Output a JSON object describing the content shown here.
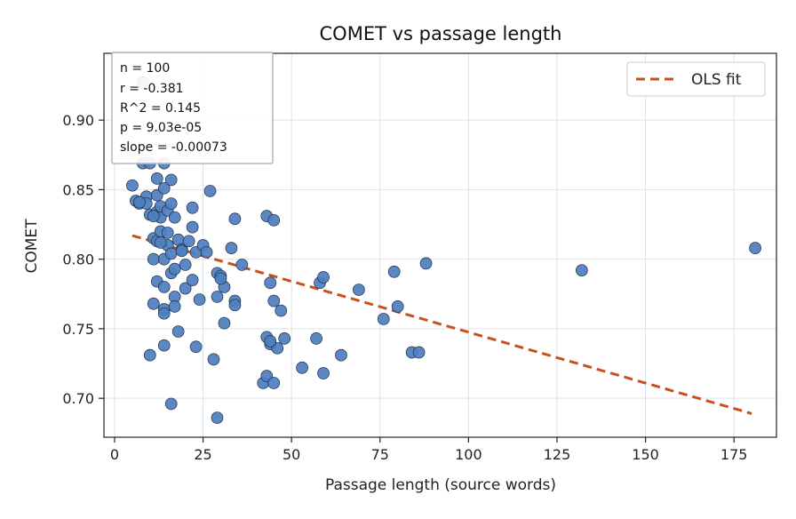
{
  "chart_data": {
    "type": "scatter",
    "title": "COMET vs passage length",
    "xlabel": "Passage length (source words)",
    "ylabel": "COMET",
    "xlim": [
      -3,
      187
    ],
    "ylim": [
      0.672,
      0.948
    ],
    "xticks": [
      0,
      25,
      50,
      75,
      100,
      125,
      150,
      175
    ],
    "yticks": [
      0.7,
      0.75,
      0.8,
      0.85,
      0.9
    ],
    "grid": true,
    "legend": {
      "position": "top-right",
      "entries": [
        "OLS fit"
      ]
    },
    "stats_lines": [
      "n = 100",
      "r = -0.381",
      "R^2 = 0.145",
      "p = 9.03e-05",
      "slope = -0.00073"
    ],
    "fit_line": {
      "x": [
        5,
        180
      ],
      "y": [
        0.817,
        0.689
      ]
    },
    "points": [
      [
        5,
        0.853
      ],
      [
        6,
        0.842
      ],
      [
        7,
        0.84
      ],
      [
        8,
        0.869
      ],
      [
        8,
        0.927
      ],
      [
        9,
        0.845
      ],
      [
        9,
        0.84
      ],
      [
        10,
        0.869
      ],
      [
        10,
        0.832
      ],
      [
        10,
        0.731
      ],
      [
        11,
        0.815
      ],
      [
        11,
        0.8
      ],
      [
        11,
        0.768
      ],
      [
        12,
        0.858
      ],
      [
        12,
        0.846
      ],
      [
        12,
        0.834
      ],
      [
        12,
        0.813
      ],
      [
        12,
        0.784
      ],
      [
        13,
        0.83
      ],
      [
        13,
        0.838
      ],
      [
        13,
        0.82
      ],
      [
        14,
        0.869
      ],
      [
        14,
        0.851
      ],
      [
        14,
        0.8
      ],
      [
        14,
        0.78
      ],
      [
        14,
        0.764
      ],
      [
        14,
        0.761
      ],
      [
        14,
        0.738
      ],
      [
        15,
        0.835
      ],
      [
        15,
        0.819
      ],
      [
        15,
        0.81
      ],
      [
        16,
        0.857
      ],
      [
        16,
        0.84
      ],
      [
        16,
        0.804
      ],
      [
        16,
        0.79
      ],
      [
        16,
        0.696
      ],
      [
        17,
        0.83
      ],
      [
        17,
        0.793
      ],
      [
        17,
        0.773
      ],
      [
        17,
        0.766
      ],
      [
        18,
        0.814
      ],
      [
        18,
        0.748
      ],
      [
        19,
        0.807
      ],
      [
        20,
        0.796
      ],
      [
        20,
        0.779
      ],
      [
        21,
        0.813
      ],
      [
        22,
        0.837
      ],
      [
        22,
        0.823
      ],
      [
        22,
        0.785
      ],
      [
        23,
        0.805
      ],
      [
        23,
        0.737
      ],
      [
        24,
        0.771
      ],
      [
        25,
        0.81
      ],
      [
        27,
        0.849
      ],
      [
        28,
        0.728
      ],
      [
        29,
        0.79
      ],
      [
        29,
        0.773
      ],
      [
        29,
        0.686
      ],
      [
        30,
        0.788
      ],
      [
        31,
        0.78
      ],
      [
        31,
        0.754
      ],
      [
        33,
        0.808
      ],
      [
        34,
        0.829
      ],
      [
        34,
        0.77
      ],
      [
        34,
        0.767
      ],
      [
        36,
        0.796
      ],
      [
        42,
        0.711
      ],
      [
        43,
        0.831
      ],
      [
        43,
        0.744
      ],
      [
        43,
        0.716
      ],
      [
        44,
        0.783
      ],
      [
        44,
        0.739
      ],
      [
        45,
        0.828
      ],
      [
        45,
        0.77
      ],
      [
        45,
        0.711
      ],
      [
        46,
        0.736
      ],
      [
        47,
        0.763
      ],
      [
        48,
        0.743
      ],
      [
        53,
        0.722
      ],
      [
        57,
        0.743
      ],
      [
        58,
        0.783
      ],
      [
        59,
        0.787
      ],
      [
        59,
        0.718
      ],
      [
        64,
        0.731
      ],
      [
        69,
        0.778
      ],
      [
        76,
        0.757
      ],
      [
        79,
        0.791
      ],
      [
        80,
        0.766
      ],
      [
        84,
        0.733
      ],
      [
        86,
        0.733
      ],
      [
        88,
        0.797
      ],
      [
        132,
        0.792
      ],
      [
        181,
        0.808
      ],
      [
        7,
        0.841
      ],
      [
        13,
        0.812
      ],
      [
        19,
        0.806
      ],
      [
        26,
        0.805
      ],
      [
        30,
        0.786
      ],
      [
        44,
        0.741
      ],
      [
        11,
        0.831
      ]
    ],
    "colors": {
      "point_fill": "#4f7fbf",
      "point_stroke": "#1f2f44",
      "fit_line": "#c8501e",
      "grid": "#dde2ea",
      "stats_border": "#aab8c6"
    }
  }
}
